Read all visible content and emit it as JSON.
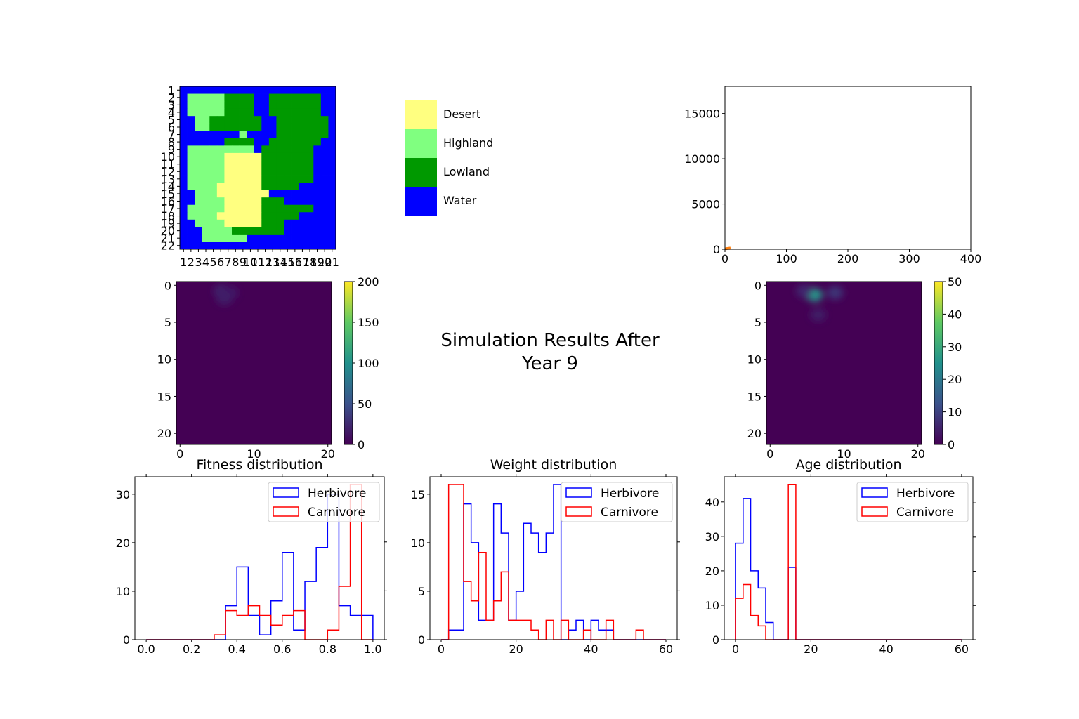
{
  "figure": {
    "suptitle_line1": "Simulation Results After",
    "suptitle_line2": "Year 9"
  },
  "colors": {
    "desert": "#ffff80",
    "highland": "#80ff80",
    "lowland": "#009900",
    "water": "#0000ff",
    "herbivore": "#0000ff",
    "carnivore": "#ff0000",
    "population_line": "#ff7f0e",
    "heatmap_background": "#440154"
  },
  "chart_data": [
    {
      "id": "island-map",
      "type": "heatmap",
      "title": "",
      "x_tick_labels": [
        "1",
        "2",
        "3",
        "4",
        "5",
        "6",
        "7",
        "8",
        "9",
        "10",
        "11",
        "12",
        "13",
        "14",
        "15",
        "16",
        "17",
        "18",
        "19",
        "20",
        "21"
      ],
      "y_tick_labels": [
        "1",
        "2",
        "3",
        "4",
        "5",
        "6",
        "7",
        "8",
        "9",
        "10",
        "11",
        "12",
        "13",
        "14",
        "15",
        "16",
        "17",
        "18",
        "19",
        "20",
        "21",
        "22"
      ],
      "legend": {
        "items": [
          "Desert",
          "Highland",
          "Lowland",
          "Water"
        ],
        "codes": [
          "D",
          "H",
          "L",
          "W"
        ]
      },
      "grid": [
        "WWWWWWWWWWWWWWWWWWWWW",
        "WHHHHHLLLLWWLLLLLLLWW",
        "WHHHHHLLLLWWLLLLLLLWW",
        "WHHHHHLLLLWWLLLLLLLWW",
        "WWHHLLLLLLLWWLLLLLLLW",
        "WWHHLLLLLLLWWLLLLLLLW",
        "WWWWWWWWHWWWWLLLLLLLW",
        "WWWWWWLLLLWWLLLLLLLWW",
        "WHHHHHHHHHWLLLLLLLWWW",
        "WHHHHHDDDDDLLLLLLLWWW",
        "WHHHHHDDDDDLLLLLLLWWW",
        "WHHHHHDDDDDLLLLLLLWWW",
        "WHHHHHDDDDDLLLLLLLWWW",
        "WHHHHDDDDDDLLLLLWWWWW",
        "WWHHHDDDDDDDWWWWWWWWW",
        "WWHHHHDDDDDLLLWWWWWWW",
        "WHHHHHDDDDDLLLLLLLWWW",
        "WHHHHDDDDDDLLLLLWWWWW",
        "WWHHHHDDDDDLLLWWWWWWW",
        "WWWHHHHLLLLLLLWWWWWWW",
        "WWWHHHHHHWWWWWWWWWWWW",
        "WWWWWWWWWWWWWWWWWWWWW"
      ]
    },
    {
      "id": "population-over-time",
      "type": "line",
      "title": "",
      "xlim": [
        0,
        400
      ],
      "ylim": [
        0,
        18000
      ],
      "x_ticks": [
        0,
        100,
        200,
        300,
        400
      ],
      "y_ticks": [
        0,
        5000,
        10000,
        15000
      ],
      "series": [
        {
          "x": [
            0,
            1,
            2,
            3,
            4,
            5,
            6,
            7,
            8,
            9
          ],
          "y": [
            50,
            70,
            90,
            110,
            120,
            130,
            140,
            150,
            155,
            160
          ]
        },
        {
          "x": [
            0,
            1,
            2,
            3,
            4,
            5,
            6,
            7,
            8,
            9
          ],
          "y": [
            20,
            25,
            30,
            40,
            45,
            50,
            55,
            60,
            65,
            70
          ]
        }
      ]
    },
    {
      "id": "herbivore-density",
      "type": "heatmap",
      "title": "",
      "x_ticks": [
        0,
        10,
        20
      ],
      "y_ticks": [
        0,
        5,
        10,
        15,
        20
      ],
      "colorbar": {
        "min": 0,
        "max": 200,
        "ticks": [
          0,
          50,
          100,
          150,
          200
        ]
      },
      "hotspots": [
        {
          "row": 0.8,
          "col": 5.6,
          "value": 20
        },
        {
          "row": 1.0,
          "col": 6.8,
          "value": 15
        },
        {
          "row": 1.8,
          "col": 6.0,
          "value": 18
        }
      ]
    },
    {
      "id": "carnivore-density",
      "type": "heatmap",
      "title": "",
      "x_ticks": [
        0,
        10,
        20
      ],
      "y_ticks": [
        0,
        5,
        10,
        15,
        20
      ],
      "colorbar": {
        "min": 0,
        "max": 50,
        "ticks": [
          0,
          10,
          20,
          30,
          40,
          50
        ]
      },
      "hotspots": [
        {
          "row": 1.3,
          "col": 6.0,
          "value": 26
        },
        {
          "row": 1.0,
          "col": 8.8,
          "value": 8
        },
        {
          "row": 0.8,
          "col": 4.6,
          "value": 6
        },
        {
          "row": 4.0,
          "col": 6.5,
          "value": 4
        }
      ]
    },
    {
      "id": "fitness-distribution",
      "type": "bar",
      "title": "Fitness distribution",
      "xlim": [
        -0.05,
        1.05
      ],
      "ylim": [
        0,
        33.6
      ],
      "x_ticks": [
        0.0,
        0.2,
        0.4,
        0.6,
        0.8,
        1.0
      ],
      "x_tick_labels": [
        "0.0",
        "0.2",
        "0.4",
        "0.6",
        "0.8",
        "1.0"
      ],
      "y_ticks": [
        0,
        10,
        20,
        30
      ],
      "bin_edges": [
        0.0,
        0.05,
        0.1,
        0.15,
        0.2,
        0.25,
        0.3,
        0.35,
        0.4,
        0.45,
        0.5,
        0.55,
        0.6,
        0.65,
        0.7,
        0.75,
        0.8,
        0.85,
        0.9,
        0.95,
        1.0
      ],
      "legend": {
        "position": "upper right",
        "entries": [
          "Herbivore",
          "Carnivore"
        ]
      },
      "series": [
        {
          "name": "Herbivore",
          "values": [
            0,
            0,
            0,
            0,
            0,
            0,
            0,
            7,
            15,
            5,
            1,
            8,
            18,
            2,
            12,
            19,
            30,
            7,
            5,
            5
          ]
        },
        {
          "name": "Carnivore",
          "values": [
            0,
            0,
            0,
            0,
            0,
            0,
            1,
            6,
            5,
            7,
            5,
            3,
            5,
            6,
            0,
            0,
            2,
            11,
            32,
            0
          ]
        }
      ]
    },
    {
      "id": "weight-distribution",
      "type": "bar",
      "title": "Weight distribution",
      "xlim": [
        -3,
        63
      ],
      "ylim": [
        0,
        16.8
      ],
      "x_ticks": [
        0,
        20,
        40,
        60
      ],
      "y_ticks": [
        0,
        5,
        10,
        15
      ],
      "bin_edges": [
        0,
        2,
        4,
        6,
        8,
        10,
        12,
        14,
        16,
        18,
        20,
        22,
        24,
        26,
        28,
        30,
        32,
        34,
        36,
        38,
        40,
        42,
        44,
        46,
        48,
        50,
        52,
        54,
        56,
        58,
        60
      ],
      "legend": {
        "position": "upper right",
        "entries": [
          "Herbivore",
          "Carnivore"
        ]
      },
      "series": [
        {
          "name": "Herbivore",
          "values": [
            0,
            1,
            1,
            14,
            10,
            2,
            2,
            14,
            11,
            2,
            5,
            12,
            11,
            9,
            11,
            16,
            0,
            1,
            2,
            0,
            2,
            1,
            1,
            0,
            0,
            0,
            0,
            0,
            0,
            0
          ]
        },
        {
          "name": "Carnivore",
          "values": [
            0,
            16,
            16,
            6,
            4,
            9,
            2,
            4,
            7,
            2,
            2,
            2,
            1,
            0,
            2,
            0,
            2,
            0,
            0,
            1,
            0,
            0,
            2,
            0,
            0,
            0,
            1,
            0,
            0,
            0
          ]
        }
      ]
    },
    {
      "id": "age-distribution",
      "type": "bar",
      "title": "Age distribution",
      "xlim": [
        -3,
        63
      ],
      "ylim": [
        0,
        47.3
      ],
      "x_ticks": [
        0,
        20,
        40,
        60
      ],
      "y_ticks": [
        0,
        10,
        20,
        30,
        40
      ],
      "bin_edges": [
        0,
        2,
        4,
        6,
        8,
        10,
        12,
        14,
        16,
        18,
        20,
        22,
        24,
        26,
        28,
        30,
        32,
        34,
        36,
        38,
        40,
        42,
        44,
        46,
        48,
        50,
        52,
        54,
        56,
        58,
        60
      ],
      "legend": {
        "position": "upper right",
        "entries": [
          "Herbivore",
          "Carnivore"
        ]
      },
      "series": [
        {
          "name": "Herbivore",
          "values": [
            28,
            41,
            20,
            15,
            5,
            0,
            0,
            21,
            0,
            0,
            0,
            0,
            0,
            0,
            0,
            0,
            0,
            0,
            0,
            0,
            0,
            0,
            0,
            0,
            0,
            0,
            0,
            0,
            0,
            0
          ]
        },
        {
          "name": "Carnivore",
          "values": [
            12,
            16,
            7,
            4,
            0,
            0,
            0,
            45,
            0,
            0,
            0,
            0,
            0,
            0,
            0,
            0,
            0,
            0,
            0,
            0,
            0,
            0,
            0,
            0,
            0,
            0,
            0,
            0,
            0,
            0
          ]
        }
      ]
    }
  ]
}
